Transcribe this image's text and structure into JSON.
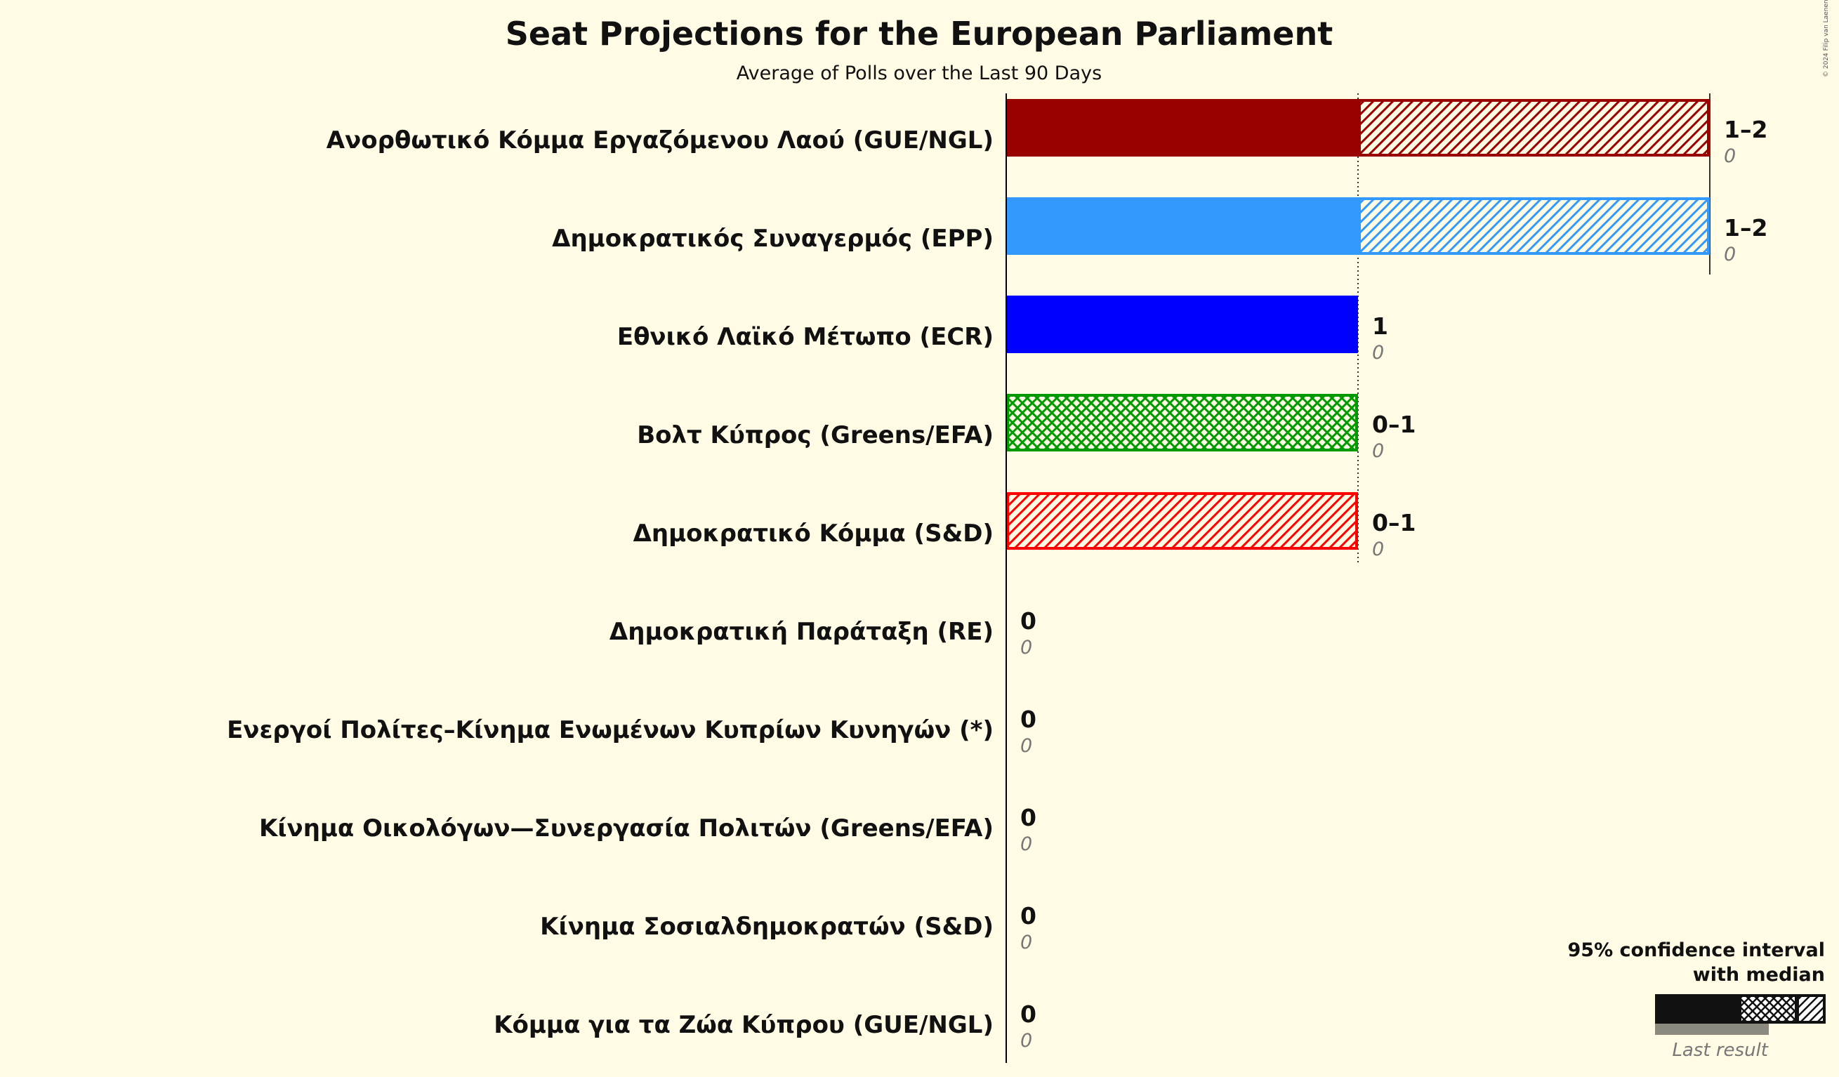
{
  "title": "Seat Projections for the European Parliament",
  "subtitle": "Average of Polls over the Last 90 Days",
  "copyright": "© 2024 Filip van Laenen",
  "legend": {
    "ci_line1": "95% confidence interval",
    "ci_line2": "with median",
    "last_result": "Last result"
  },
  "colors": {
    "background": "#FFFBE4",
    "axis": "#000000",
    "legend_last": "#8C8A7E"
  },
  "chart_data": {
    "type": "bar",
    "orientation": "horizontal",
    "xlim": [
      0,
      2
    ],
    "gridlines": [
      1,
      2
    ],
    "series": [
      {
        "party": "Ανορθωτικό Κόμμα Εργαζόμενου Λαού (GUE/NGL)",
        "low": 1,
        "median": 1,
        "high": 2,
        "last_result": 0,
        "range_label": "1–2",
        "last_label": "0",
        "color": "#990000",
        "pattern": "hatch"
      },
      {
        "party": "Δημοκρατικός Συναγερμός (EPP)",
        "low": 1,
        "median": 1,
        "high": 2,
        "last_result": 0,
        "range_label": "1–2",
        "last_label": "0",
        "color": "#3399FF",
        "pattern": "hatch"
      },
      {
        "party": "Εθνικό Λαϊκό Μέτωπο (ECR)",
        "low": 1,
        "median": 1,
        "high": 1,
        "last_result": 0,
        "range_label": "1",
        "last_label": "0",
        "color": "#0000FF",
        "pattern": "none"
      },
      {
        "party": "Βολτ Κύπρος (Greens/EFA)",
        "low": 0,
        "median": 1,
        "high": 1,
        "last_result": 0,
        "range_label": "0–1",
        "last_label": "0",
        "color": "#009900",
        "pattern": "crosshatch"
      },
      {
        "party": "Δημοκρατικό Κόμμα (S&D)",
        "low": 0,
        "median": 0,
        "high": 1,
        "last_result": 0,
        "range_label": "0–1",
        "last_label": "0",
        "color": "#FF0000",
        "pattern": "hatch"
      },
      {
        "party": "Δημοκρατική Παράταξη (RE)",
        "low": 0,
        "median": 0,
        "high": 0,
        "last_result": 0,
        "range_label": "0",
        "last_label": "0",
        "color": "#FFD700",
        "pattern": "none"
      },
      {
        "party": "Ενεργοί Πολίτες–Κίνημα Ενωμένων Κυπρίων Κυνηγών (*)",
        "low": 0,
        "median": 0,
        "high": 0,
        "last_result": 0,
        "range_label": "0",
        "last_label": "0",
        "color": "#888888",
        "pattern": "none"
      },
      {
        "party": "Κίνημα Οικολόγων—Συνεργασία Πολιτών (Greens/EFA)",
        "low": 0,
        "median": 0,
        "high": 0,
        "last_result": 0,
        "range_label": "0",
        "last_label": "0",
        "color": "#00AA00",
        "pattern": "none"
      },
      {
        "party": "Κίνημα Σοσιαλδημοκρατών (S&D)",
        "low": 0,
        "median": 0,
        "high": 0,
        "last_result": 0,
        "range_label": "0",
        "last_label": "0",
        "color": "#FF3333",
        "pattern": "none"
      },
      {
        "party": "Κόμμα για τα Ζώα Κύπρου (GUE/NGL)",
        "low": 0,
        "median": 0,
        "high": 0,
        "last_result": 0,
        "range_label": "0",
        "last_label": "0",
        "color": "#666666",
        "pattern": "none"
      }
    ]
  }
}
